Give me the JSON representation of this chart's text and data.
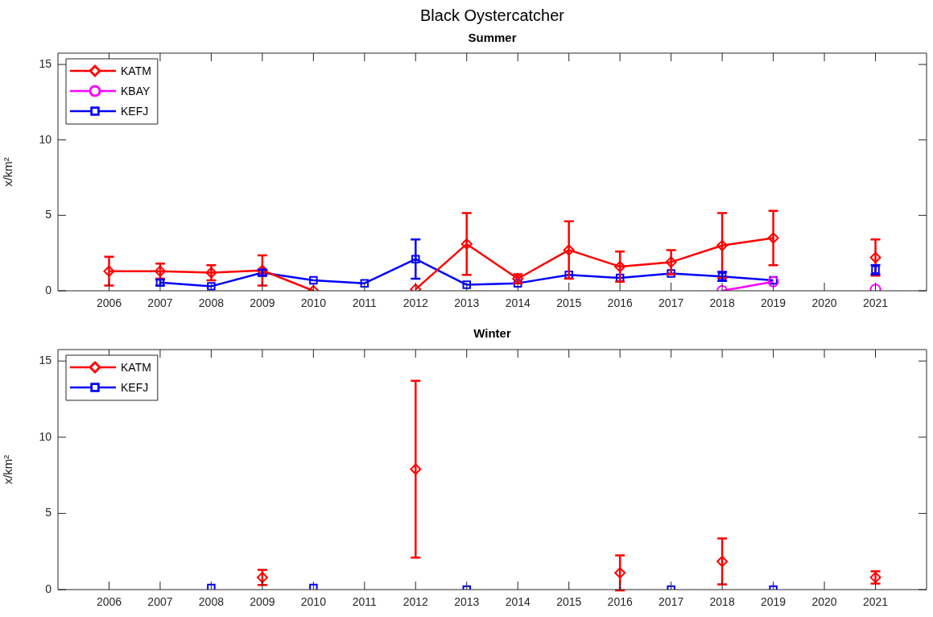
{
  "chart_data": [
    {
      "type": "line",
      "title": "Black Oystercatcher",
      "subtitle": "Summer",
      "ylabel": "x/km²",
      "x": [
        2006,
        2007,
        2008,
        2009,
        2010,
        2011,
        2012,
        2013,
        2014,
        2015,
        2016,
        2017,
        2018,
        2019,
        2020,
        2021
      ],
      "xlim": [
        2005,
        2022
      ],
      "xticks": [
        2006,
        2007,
        2008,
        2009,
        2010,
        2011,
        2012,
        2013,
        2014,
        2015,
        2016,
        2017,
        2018,
        2019,
        2020,
        2021
      ],
      "ylim": [
        0,
        15.75
      ],
      "yticks": [
        0,
        5,
        10,
        15
      ],
      "grid": false,
      "legend": "top left",
      "series": [
        {
          "name": "KATM",
          "color": "#ff0000",
          "marker": "diamond",
          "values": [
            1.3,
            1.3,
            1.2,
            1.35,
            0,
            null,
            0.1,
            3.1,
            0.8,
            2.7,
            1.6,
            1.9,
            3.0,
            3.5,
            null,
            2.2
          ],
          "errors": [
            0.95,
            0.5,
            0.5,
            1.0,
            null,
            null,
            null,
            2.05,
            0.3,
            1.9,
            1.0,
            0.8,
            2.15,
            1.8,
            null,
            1.2
          ]
        },
        {
          "name": "KBAY",
          "color": "#ff00ff",
          "marker": "circle",
          "values": [
            null,
            null,
            null,
            null,
            null,
            null,
            null,
            null,
            null,
            null,
            null,
            null,
            0,
            0.6,
            null,
            0.1
          ]
        },
        {
          "name": "KEFJ",
          "color": "#0000ff",
          "marker": "square",
          "values": [
            null,
            0.55,
            0.3,
            1.2,
            0.7,
            0.5,
            2.1,
            0.4,
            0.5,
            1.05,
            0.85,
            1.15,
            0.95,
            0.7,
            null,
            1.4
          ],
          "errors": [
            null,
            0.2,
            null,
            0.2,
            null,
            null,
            1.3,
            null,
            null,
            null,
            null,
            null,
            0.3,
            null,
            null,
            0.3
          ]
        }
      ]
    },
    {
      "type": "line",
      "title": "Winter",
      "ylabel": "x/km²",
      "x": [
        2008,
        2009,
        2010,
        2012,
        2013,
        2016,
        2017,
        2018,
        2019,
        2021
      ],
      "xlim": [
        2005,
        2022
      ],
      "xticks": [
        2006,
        2007,
        2008,
        2009,
        2010,
        2011,
        2012,
        2013,
        2014,
        2015,
        2016,
        2017,
        2018,
        2019,
        2020,
        2021
      ],
      "ylim": [
        0,
        15.75
      ],
      "yticks": [
        0,
        5,
        10,
        15
      ],
      "grid": false,
      "legend": "top left",
      "series": [
        {
          "name": "KATM",
          "color": "#ff0000",
          "marker": "diamond",
          "values": [
            null,
            0.8,
            null,
            7.9,
            null,
            1.1,
            null,
            1.85,
            null,
            0.8
          ],
          "errors": [
            null,
            0.5,
            null,
            5.8,
            null,
            1.15,
            null,
            1.5,
            null,
            0.4
          ]
        },
        {
          "name": "KEFJ",
          "color": "#0000ff",
          "marker": "square",
          "values": [
            0.1,
            null,
            0.1,
            null,
            0,
            null,
            0,
            null,
            0,
            null
          ]
        }
      ]
    }
  ]
}
